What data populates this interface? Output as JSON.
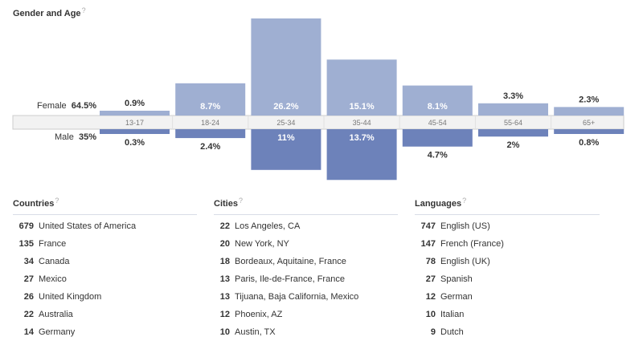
{
  "title": "Gender and Age",
  "help_mark": "?",
  "female": {
    "label": "Female",
    "percent": "64.5%"
  },
  "male": {
    "label": "Male",
    "percent": "35%"
  },
  "chart_data": {
    "type": "bar",
    "title": "Gender and Age",
    "categories": [
      "13-17",
      "18-24",
      "25-34",
      "35-44",
      "45-54",
      "55-64",
      "65+"
    ],
    "series": [
      {
        "name": "Female",
        "values": [
          0.9,
          8.7,
          26.2,
          15.1,
          8.1,
          3.3,
          2.3
        ],
        "labels": [
          "0.9%",
          "8.7%",
          "26.2%",
          "15.1%",
          "8.1%",
          "3.3%",
          "2.3%"
        ],
        "color": "#9fafd2"
      },
      {
        "name": "Male",
        "values": [
          0.3,
          2.4,
          11,
          13.7,
          4.7,
          2,
          0.8
        ],
        "labels": [
          "0.3%",
          "2.4%",
          "11%",
          "13.7%",
          "4.7%",
          "2%",
          "0.8%"
        ],
        "color": "#6d82ba"
      }
    ],
    "ylim": [
      0,
      26.2
    ],
    "colors": {
      "axis_band": "#f2f2f2",
      "axis_border": "#cccccc",
      "label_inside": "#ffffff",
      "label_outside": "#333333"
    }
  },
  "countries": {
    "title": "Countries",
    "items": [
      {
        "count": "679",
        "name": "United States of America"
      },
      {
        "count": "135",
        "name": "France"
      },
      {
        "count": "34",
        "name": "Canada"
      },
      {
        "count": "27",
        "name": "Mexico"
      },
      {
        "count": "26",
        "name": "United Kingdom"
      },
      {
        "count": "22",
        "name": "Australia"
      },
      {
        "count": "14",
        "name": "Germany"
      }
    ]
  },
  "cities": {
    "title": "Cities",
    "items": [
      {
        "count": "22",
        "name": "Los Angeles, CA"
      },
      {
        "count": "20",
        "name": "New York, NY"
      },
      {
        "count": "18",
        "name": "Bordeaux, Aquitaine, France"
      },
      {
        "count": "13",
        "name": "Paris, Ile-de-France, France"
      },
      {
        "count": "13",
        "name": "Tijuana, Baja California, Mexico"
      },
      {
        "count": "12",
        "name": "Phoenix, AZ"
      },
      {
        "count": "10",
        "name": "Austin, TX"
      }
    ]
  },
  "languages": {
    "title": "Languages",
    "items": [
      {
        "count": "747",
        "name": "English (US)"
      },
      {
        "count": "147",
        "name": "French (France)"
      },
      {
        "count": "78",
        "name": "English (UK)"
      },
      {
        "count": "27",
        "name": "Spanish"
      },
      {
        "count": "12",
        "name": "German"
      },
      {
        "count": "10",
        "name": "Italian"
      },
      {
        "count": "9",
        "name": "Dutch"
      }
    ]
  }
}
